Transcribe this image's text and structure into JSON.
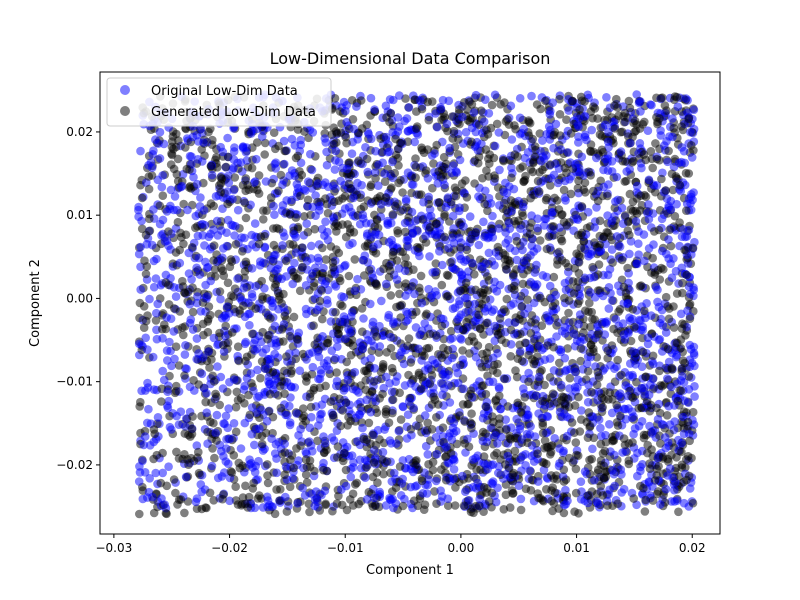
{
  "chart_data": {
    "type": "scatter",
    "title": "Low-Dimensional Data Comparison",
    "xlabel": "Component 1",
    "ylabel": "Component 2",
    "xlim": [
      -0.0312,
      0.0224
    ],
    "ylim": [
      -0.0283,
      0.0272
    ],
    "xticks": [
      -0.03,
      -0.02,
      -0.01,
      0.0,
      0.01,
      0.02
    ],
    "xtick_labels": [
      "−0.03",
      "−0.02",
      "−0.01",
      "0.00",
      "0.01",
      "0.02"
    ],
    "yticks": [
      -0.02,
      -0.01,
      0.0,
      0.01,
      0.02
    ],
    "ytick_labels": [
      "−0.02",
      "−0.01",
      "0.00",
      "0.01",
      "0.02"
    ],
    "grid": false,
    "legend_position": "top-left",
    "series": [
      {
        "name": "Original Low-Dim Data",
        "color": "#0000ff",
        "opacity": 0.5,
        "point_count": 2500,
        "x_range": [
          -0.028,
          0.0202
        ],
        "y_range": [
          -0.0252,
          0.0245
        ],
        "points": [
          [
            -0.0275,
            -0.0241
          ],
          [
            -0.0262,
            -0.0244
          ],
          [
            -0.0255,
            -0.0252
          ],
          [
            -0.0277,
            -0.0171
          ],
          [
            -0.0276,
            -0.0111
          ],
          [
            -0.0278,
            -0.0068
          ],
          [
            -0.0275,
            -0.0026
          ],
          [
            -0.0277,
            0.0038
          ],
          [
            -0.0276,
            0.0093
          ],
          [
            -0.0277,
            0.0177
          ],
          [
            -0.0262,
            0.0212
          ],
          [
            -0.0178,
            0.0224
          ],
          [
            -0.0101,
            0.0236
          ],
          [
            -0.0033,
            0.0241
          ],
          [
            0.0061,
            0.0243
          ],
          [
            0.0152,
            0.0245
          ],
          [
            0.0196,
            0.0238
          ],
          [
            0.0199,
            0.0122
          ],
          [
            0.0201,
            0.0003
          ],
          [
            0.0202,
            -0.0118
          ],
          [
            0.0199,
            -0.0221
          ],
          [
            0.0193,
            -0.0246
          ],
          [
            0.0107,
            -0.0243
          ],
          [
            0.0021,
            -0.0247
          ],
          [
            -0.0074,
            -0.0248
          ],
          [
            -0.0171,
            -0.0251
          ]
        ]
      },
      {
        "name": "Generated Low-Dim Data",
        "color": "#000000",
        "opacity": 0.5,
        "point_count": 2500,
        "x_range": [
          -0.0278,
          0.0201
        ],
        "y_range": [
          -0.0259,
          0.0243
        ],
        "points": [
          [
            -0.0278,
            -0.0259
          ],
          [
            -0.0255,
            -0.0258
          ],
          [
            -0.0224,
            -0.0253
          ],
          [
            -0.0277,
            -0.0175
          ],
          [
            -0.0278,
            -0.0052
          ],
          [
            -0.0278,
            0.0061
          ],
          [
            -0.0277,
            0.0136
          ],
          [
            -0.0265,
            0.0204
          ],
          [
            -0.0198,
            0.0213
          ],
          [
            -0.0094,
            0.0238
          ],
          [
            0.0012,
            0.0241
          ],
          [
            0.0093,
            0.0243
          ],
          [
            0.0169,
            0.0241
          ],
          [
            0.0193,
            0.0212
          ],
          [
            0.0196,
            0.0081
          ],
          [
            0.0195,
            -0.0084
          ],
          [
            0.0194,
            -0.0203
          ],
          [
            0.0187,
            -0.0241
          ],
          [
            0.0089,
            -0.0244
          ],
          [
            -0.0011,
            -0.0249
          ],
          [
            -0.0117,
            -0.0248
          ],
          [
            -0.0189,
            -0.0247
          ]
        ]
      }
    ]
  }
}
